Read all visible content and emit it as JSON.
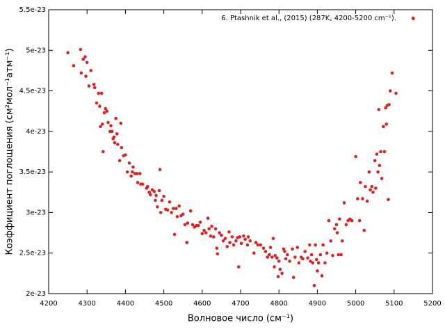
{
  "chart_data": {
    "type": "scatter",
    "xlabel": "Волновое число (см⁻¹)",
    "ylabel": "Коэффициент поглощения (см²мол⁻¹атм⁻¹)",
    "xlim": [
      4200,
      5200
    ],
    "xticks": [
      4200,
      4300,
      4400,
      4500,
      4600,
      4700,
      4800,
      4900,
      5000,
      5100,
      5200
    ],
    "ylim": [
      2e-23,
      5.5e-23
    ],
    "yticks": [
      2e-23,
      2.5e-23,
      3e-23,
      3.5e-23,
      4e-23,
      4.5e-23,
      5e-23,
      5.5e-23
    ],
    "legend": "top-right",
    "series": [
      {
        "name": "6. Ptashnik et al., (2015) (287K, 4200-5200 cm⁻¹).",
        "color": "#dd2222",
        "x": [
          4250,
          4265,
          4283,
          4285,
          4290,
          4295,
          4297,
          4300,
          4305,
          4310,
          4318,
          4320,
          4325,
          4330,
          4333,
          4335,
          4338,
          4340,
          4342,
          4345,
          4348,
          4352,
          4355,
          4360,
          4362,
          4365,
          4368,
          4370,
          4372,
          4375,
          4378,
          4380,
          4385,
          4388,
          4390,
          4395,
          4400,
          4405,
          4410,
          4415,
          4418,
          4420,
          4425,
          4430,
          4432,
          4438,
          4440,
          4445,
          4455,
          4458,
          4462,
          4465,
          4470,
          4475,
          4478,
          4480,
          4483,
          4488,
          4490,
          4492,
          4495,
          4500,
          4505,
          4510,
          4515,
          4520,
          4525,
          4528,
          4532,
          4535,
          4540,
          4545,
          4550,
          4555,
          4560,
          4562,
          4570,
          4575,
          4580,
          4585,
          4590,
          4595,
          4600,
          4605,
          4610,
          4615,
          4618,
          4622,
          4625,
          4630,
          4635,
          4638,
          4640,
          4645,
          4650,
          4655,
          4660,
          4665,
          4670,
          4672,
          4678,
          4682,
          4688,
          4692,
          4695,
          4698,
          4702,
          4708,
          4712,
          4718,
          4720,
          4725,
          4735,
          4740,
          4745,
          4752,
          4760,
          4765,
          4770,
          4775,
          4778,
          4782,
          4785,
          4788,
          4790,
          4795,
          4798,
          4800,
          4803,
          4808,
          4812,
          4815,
          4818,
          4822,
          4828,
          4835,
          4838,
          4842,
          4848,
          4852,
          4858,
          4862,
          4868,
          4875,
          4880,
          4882,
          4885,
          4888,
          4892,
          4895,
          4898,
          4900,
          4903,
          4908,
          4912,
          4915,
          4920,
          4925,
          4930,
          4935,
          4940,
          4945,
          4950,
          4952,
          4955,
          4958,
          4962,
          4965,
          4970,
          4975,
          4980,
          4985,
          4990,
          5000,
          5005,
          5010,
          5012,
          5018,
          5022,
          5025,
          5030,
          5035,
          5038,
          5042,
          5045,
          5050,
          5052,
          5055,
          5058,
          5060,
          5062,
          5065,
          5068,
          5072,
          5075,
          5078,
          5080,
          5082,
          5085,
          5087,
          5090,
          5095,
          5105,
          5150
        ],
        "values": [
          4.97e-23,
          4.81e-23,
          5.01e-23,
          4.72e-23,
          4.89e-23,
          4.92e-23,
          4.68e-23,
          4.85e-23,
          4.56e-23,
          4.75e-23,
          4.58e-23,
          4.54e-23,
          4.35e-23,
          4.47e-23,
          4.31e-23,
          4.06e-23,
          4.47e-23,
          4.09e-23,
          3.75e-23,
          4.23e-23,
          4.28e-23,
          4.25e-23,
          4.11e-23,
          4e-23,
          4.07e-23,
          4e-23,
          3.91e-23,
          3.93e-23,
          3.86e-23,
          4.16e-23,
          3.97e-23,
          3.84e-23,
          3.64e-23,
          4.1e-23,
          3.8e-23,
          3.7e-23,
          3.71e-23,
          3.5e-23,
          3.61e-23,
          3.45e-23,
          3.5e-23,
          3.56e-23,
          3.48e-23,
          3.48e-23,
          3.37e-23,
          3.48e-23,
          3.35e-23,
          3.35e-23,
          3.3e-23,
          3.32e-23,
          3.25e-23,
          3.22e-23,
          3.28e-23,
          3.26e-23,
          3.15e-23,
          3.21e-23,
          3.07e-23,
          3.27e-23,
          3.53e-23,
          3e-23,
          3.15e-23,
          3.2e-23,
          3.04e-23,
          3.03e-23,
          3.13e-23,
          3e-23,
          3.05e-23,
          2.73e-23,
          3.05e-23,
          2.95e-23,
          3.08e-23,
          2.96e-23,
          2.98e-23,
          2.85e-23,
          2.63e-23,
          2.87e-23,
          3.02e-23,
          2.85e-23,
          2.82e-23,
          2.84e-23,
          2.84e-23,
          2.88e-23,
          2.74e-23,
          2.78e-23,
          2.75e-23,
          2.93e-23,
          2.8e-23,
          2.71e-23,
          2.83e-23,
          2.7e-23,
          2.8e-23,
          2.56e-23,
          2.49e-23,
          2.75e-23,
          2.72e-23,
          2.65e-23,
          2.68e-23,
          2.58e-23,
          2.76e-23,
          2.63e-23,
          2.7e-23,
          2.6e-23,
          2.65e-23,
          2.69e-23,
          2.33e-23,
          2.7e-23,
          2.62e-23,
          2.71e-23,
          2.67e-23,
          2.6e-23,
          2.7e-23,
          2.65e-23,
          2.5e-23,
          2.63e-23,
          2.6e-23,
          2.6e-23,
          2.56e-23,
          2.52e-23,
          2.45e-23,
          2.48e-23,
          2.57e-23,
          2.45e-23,
          2.68e-23,
          2.33e-23,
          2.47e-23,
          2.44e-23,
          2.21e-23,
          2.4e-23,
          2.3e-23,
          2.25e-23,
          2.55e-23,
          2.52e-23,
          2.43e-23,
          2.48e-23,
          2.4e-23,
          2.55e-23,
          2.2e-23,
          2.45e-23,
          2.57e-23,
          2.38e-23,
          2.45e-23,
          2.43e-23,
          2.52e-23,
          2.44e-23,
          2.6e-23,
          2.4e-23,
          2.48e-23,
          2.38e-23,
          2.1e-23,
          2.6e-23,
          2.42e-23,
          2.28e-23,
          2.38e-23,
          2.48e-23,
          2.22e-23,
          2.6e-23,
          2.38e-23,
          2.5e-23,
          2.9e-23,
          2.65e-23,
          2.47e-23,
          2.8e-23,
          2.85e-23,
          2.75e-23,
          2.48e-23,
          2.92e-23,
          2.48e-23,
          2.65e-23,
          3.12e-23,
          2.85e-23,
          2.9e-23,
          2.92e-23,
          2.9e-23,
          3.69e-23,
          3.17e-23,
          2.9e-23,
          3.37e-23,
          3.17e-23,
          2.78e-23,
          3.32e-23,
          3.14e-23,
          3.5e-23,
          3.28e-23,
          3.32e-23,
          3.25e-23,
          3.64e-23,
          3.3e-23,
          3.72e-23,
          3.5e-23,
          4.27e-23,
          3.58e-23,
          3.75e-23,
          3.42e-23,
          4.06e-23,
          3.75e-23,
          4.29e-23,
          4.09e-23,
          4.32e-23,
          3.16e-23,
          4.33e-23,
          4.5e-23,
          4.72e-23,
          4.47e-23,
          5.39e-23
        ]
      }
    ]
  }
}
